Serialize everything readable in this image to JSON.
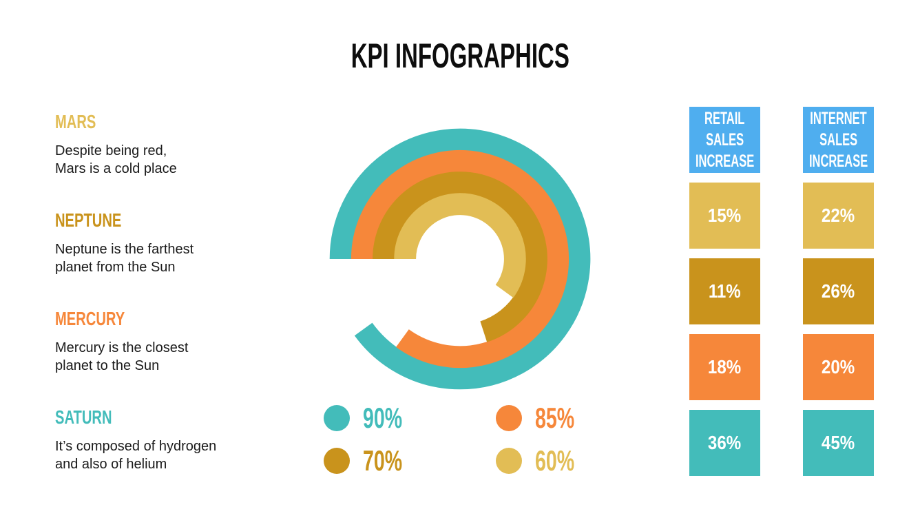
{
  "title": "KPI INFOGRAPHICS",
  "colors": {
    "teal": "#43BCBA",
    "orange": "#F6873A",
    "dark_gold": "#C9931C",
    "light_gold": "#E2BD55",
    "blue": "#4FAEEF",
    "text": "#1a1a1a"
  },
  "planets": [
    {
      "name": "MARS",
      "color": "#E2BD55",
      "desc": [
        "Despite being red,",
        "Mars is a cold place"
      ]
    },
    {
      "name": "NEPTUNE",
      "color": "#C9931C",
      "desc": [
        "Neptune is the farthest",
        "planet from the Sun"
      ]
    },
    {
      "name": "MERCURY",
      "color": "#F6873A",
      "desc": [
        "Mercury is the closest",
        "planet to the Sun"
      ]
    },
    {
      "name": "SATURN",
      "color": "#43BCBA",
      "desc": [
        "It’s composed of hydrogen",
        "and also of helium"
      ]
    }
  ],
  "legend": [
    {
      "label": "90%",
      "color": "#43BCBA"
    },
    {
      "label": "85%",
      "color": "#F6873A"
    },
    {
      "label": "70%",
      "color": "#C9931C"
    },
    {
      "label": "60%",
      "color": "#E2BD55"
    }
  ],
  "table": {
    "columns": [
      {
        "header": [
          "RETAIL",
          "SALES",
          "INCREASE"
        ],
        "values": [
          "15%",
          "11%",
          "18%",
          "36%"
        ]
      },
      {
        "header": [
          "INTERNET",
          "SALES",
          "INCREASE"
        ],
        "values": [
          "22%",
          "26%",
          "20%",
          "45%"
        ]
      }
    ],
    "row_colors": [
      "#E2BD55",
      "#C9931C",
      "#F6873A",
      "#43BCBA"
    ]
  },
  "chart_data": [
    {
      "type": "radial-bar",
      "title": "KPI INFOGRAPHICS",
      "categories": [
        "Saturn",
        "Mercury",
        "Neptune",
        "Mars"
      ],
      "values": [
        90,
        85,
        70,
        60
      ],
      "labels": [
        "90%",
        "85%",
        "70%",
        "60%"
      ],
      "colors": [
        "#43BCBA",
        "#F6873A",
        "#C9931C",
        "#E2BD55"
      ],
      "ring_order": "outer-to-inner",
      "start_angle": "9 o'clock",
      "direction": "clockwise",
      "max": 100
    },
    {
      "type": "table",
      "columns": [
        "RETAIL SALES INCREASE",
        "INTERNET SALES INCREASE"
      ],
      "rows": [
        {
          "category": "Mars",
          "values": [
            15,
            22
          ]
        },
        {
          "category": "Neptune",
          "values": [
            11,
            26
          ]
        },
        {
          "category": "Mercury",
          "values": [
            18,
            20
          ]
        },
        {
          "category": "Saturn",
          "values": [
            36,
            45
          ]
        }
      ],
      "unit": "%"
    }
  ]
}
